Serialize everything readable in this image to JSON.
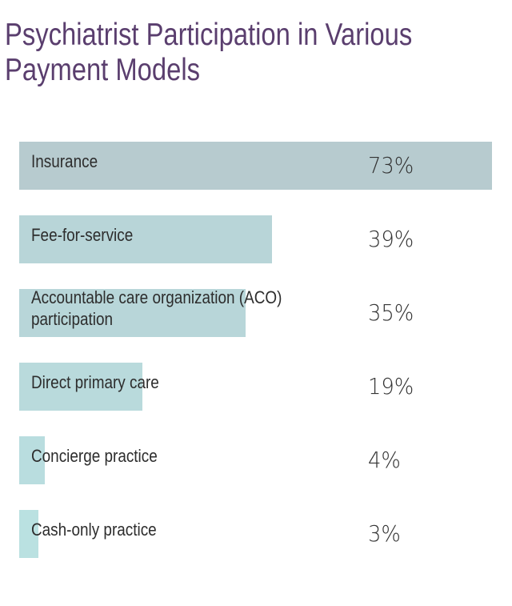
{
  "chart_data": {
    "type": "bar",
    "orientation": "horizontal",
    "title": "Psychiatrist Participation in Various Payment Models",
    "title_lines": [
      "Psychiatrist Participation in Various",
      "Payment Models"
    ],
    "categories": [
      [
        "Insurance"
      ],
      [
        "Fee-for-service"
      ],
      [
        "Accountable care organization (ACO)",
        "participation"
      ],
      [
        "Direct primary care"
      ],
      [
        "Concierge practice"
      ],
      [
        "Cash-only practice"
      ]
    ],
    "values": [
      73,
      39,
      35,
      19,
      4,
      3
    ],
    "value_labels": [
      "73%",
      "39%",
      "35%",
      "19%",
      "4%",
      "3%"
    ],
    "bar_colors": [
      "#b7cbcf",
      "#b8d5d8",
      "#b8d6d9",
      "#b9dadc",
      "#b9dddf",
      "#bae1e1"
    ],
    "xlim": [
      0,
      73
    ],
    "grid": false,
    "legend": "none"
  },
  "colors": {
    "title": "#5a3e6e",
    "text": "#2d2d2d"
  }
}
